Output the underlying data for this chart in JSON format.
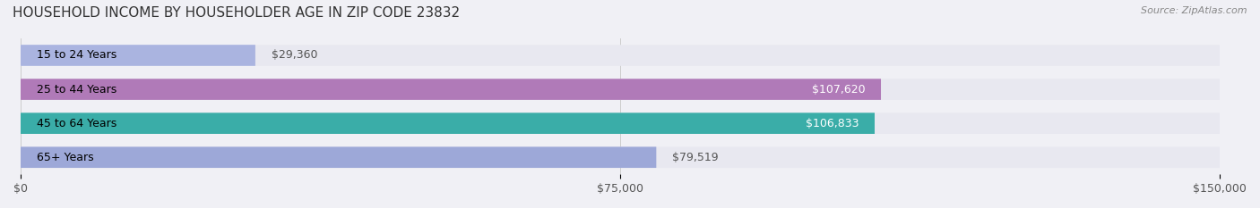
{
  "title": "HOUSEHOLD INCOME BY HOUSEHOLDER AGE IN ZIP CODE 23832",
  "source": "Source: ZipAtlas.com",
  "categories": [
    "15 to 24 Years",
    "25 to 44 Years",
    "45 to 64 Years",
    "65+ Years"
  ],
  "values": [
    29360,
    107620,
    106833,
    79519
  ],
  "bar_colors": [
    "#aab4e0",
    "#b07ab8",
    "#3aada8",
    "#9da8d8"
  ],
  "bg_color": "#f0f0f5",
  "bar_bg_color": "#e8e8f0",
  "xlim": [
    0,
    150000
  ],
  "xticks": [
    0,
    75000,
    150000
  ],
  "xtick_labels": [
    "$0",
    "$75,000",
    "$150,000"
  ],
  "bar_height": 0.62,
  "title_fontsize": 11,
  "label_fontsize": 9,
  "value_fontsize": 9,
  "tick_fontsize": 9
}
